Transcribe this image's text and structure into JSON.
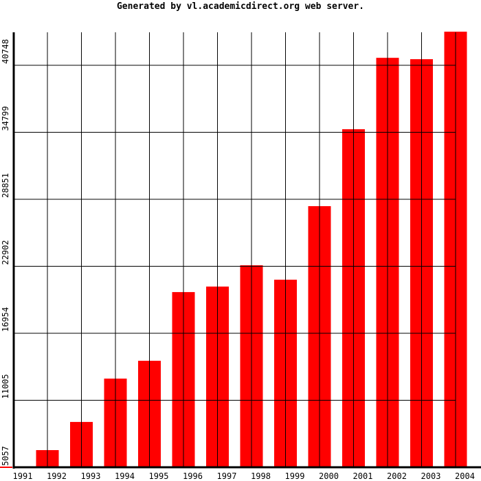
{
  "chart_data": {
    "type": "bar",
    "title": "Generated by vl.academicdirect.org web server.",
    "categories": [
      "1991",
      "1992",
      "1993",
      "1994",
      "1995",
      "1996",
      "1997",
      "1998",
      "1999",
      "2000",
      "2001",
      "2002",
      "2003",
      "2004"
    ],
    "values": [
      5057,
      6580,
      9080,
      12930,
      14510,
      20610,
      21100,
      22990,
      21710,
      28240,
      35070,
      41410,
      41290,
      43730
    ],
    "yticks": [
      "5057",
      "11005",
      "16954",
      "22902",
      "28851",
      "34799",
      "40748"
    ],
    "ylim": [
      5057,
      43750
    ],
    "grid": true,
    "bar_color": "#ff0000",
    "grid_color": "#000000"
  }
}
